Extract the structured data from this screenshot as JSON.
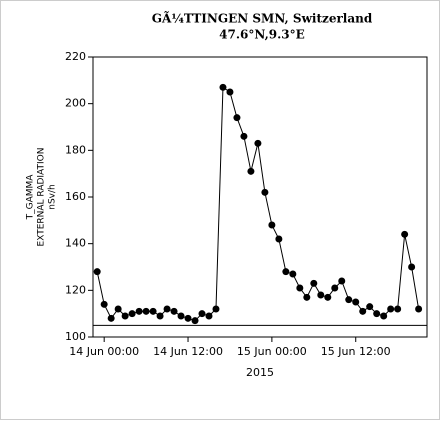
{
  "chart_data": {
    "type": "line",
    "title": "GÃ¼TTINGEN SMN, Switzerland",
    "subtitle": "47.6°N,9.3°E",
    "ylabel": [
      "T_GAMMA",
      "EXTERNAL RADIATION",
      "nSv/h"
    ],
    "xlabel": "2015",
    "x": [
      -1,
      0,
      1,
      2,
      3,
      4,
      5,
      6,
      7,
      8,
      9,
      10,
      11,
      12,
      13,
      14,
      15,
      16,
      17,
      18,
      19,
      20,
      21,
      22,
      23,
      24,
      25,
      26,
      27,
      28,
      29,
      30,
      31,
      32,
      33,
      34,
      35,
      36,
      37,
      38,
      39,
      40,
      41,
      42,
      43,
      44,
      45
    ],
    "series": [
      {
        "name": "T_GAMMA",
        "color": "#000000",
        "values": [
          128,
          114,
          108,
          112,
          109,
          110,
          111,
          111,
          111,
          109,
          112,
          111,
          109,
          108,
          107,
          110,
          109,
          112,
          207,
          205,
          194,
          186,
          171,
          183,
          162,
          148,
          142,
          128,
          127,
          121,
          117,
          123,
          118,
          117,
          121,
          124,
          116,
          115,
          111,
          113,
          110,
          109,
          112,
          112,
          144,
          130,
          112
        ]
      }
    ],
    "hline": 105,
    "xlim": [
      -1.6,
      46.2
    ],
    "xticks": [
      {
        "value": 0,
        "label": "14 Jun 00:00"
      },
      {
        "value": 12,
        "label": "14 Jun 12:00"
      },
      {
        "value": 24,
        "label": "15 Jun 00:00"
      },
      {
        "value": 36,
        "label": "15 Jun 12:00"
      }
    ],
    "ylim": [
      100,
      220
    ],
    "yticks": [
      100,
      120,
      140,
      160,
      180,
      200,
      220
    ]
  }
}
